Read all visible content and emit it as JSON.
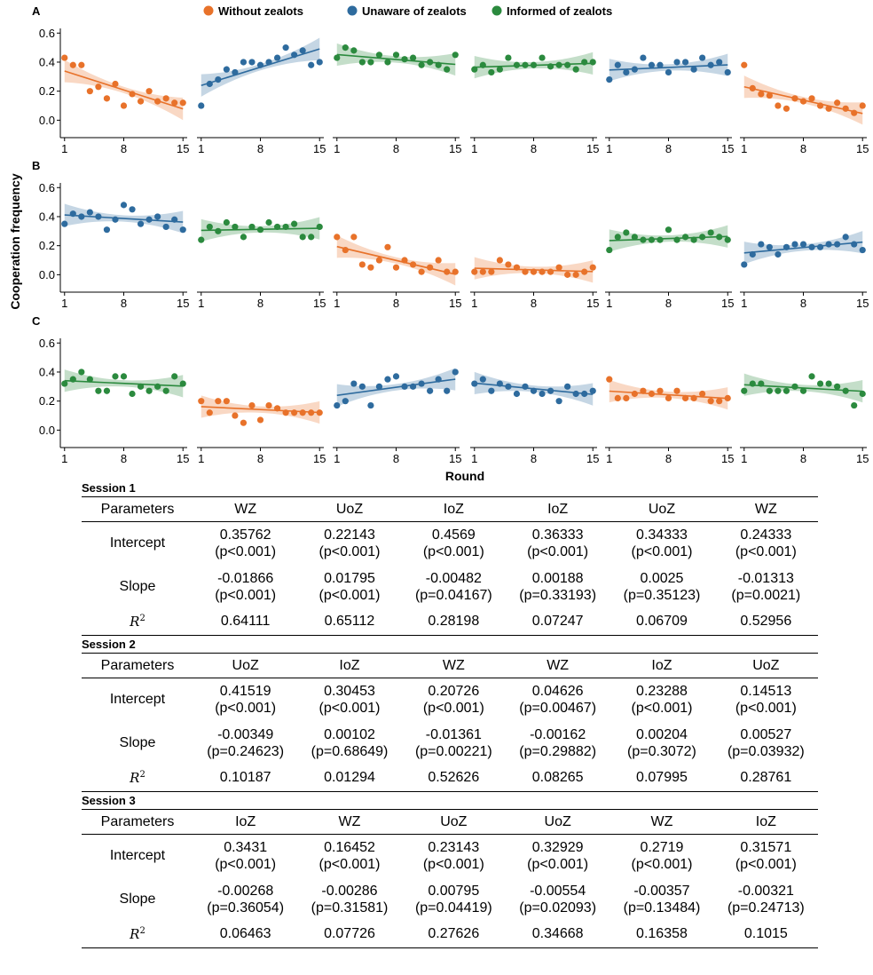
{
  "legend": [
    {
      "label": "Without zealots",
      "color": "#e8722a"
    },
    {
      "label": "Unaware of zealots",
      "color": "#2e6b9e"
    },
    {
      "label": "Informed of zealots",
      "color": "#2b8a3e"
    }
  ],
  "ylabel": "Cooperation frequency",
  "xlabel": "Round",
  "chart_data": {
    "type": "scatter",
    "x_ticks": [
      1,
      8,
      15
    ],
    "y_ticks": [
      "0.0",
      "0.2",
      "0.4",
      "0.6"
    ],
    "ylim": [
      -0.12,
      0.62
    ],
    "xlim": [
      0.5,
      15.5
    ],
    "colors": {
      "WZ": "#e8722a",
      "UoZ": "#2e6b9e",
      "IoZ": "#2b8a3e"
    },
    "rows": [
      {
        "label": "A",
        "panels": [
          {
            "condition": "WZ",
            "points": [
              0.43,
              0.38,
              0.38,
              0.2,
              0.23,
              0.15,
              0.25,
              0.1,
              0.18,
              0.13,
              0.2,
              0.13,
              0.15,
              0.12,
              0.12
            ],
            "intercept": 0.35762,
            "slope": -0.01866
          },
          {
            "condition": "UoZ",
            "points": [
              0.1,
              0.25,
              0.28,
              0.35,
              0.33,
              0.4,
              0.4,
              0.38,
              0.4,
              0.43,
              0.5,
              0.45,
              0.48,
              0.38,
              0.4
            ],
            "intercept": 0.22143,
            "slope": 0.01795
          },
          {
            "condition": "IoZ",
            "points": [
              0.43,
              0.5,
              0.48,
              0.4,
              0.4,
              0.45,
              0.4,
              0.45,
              0.42,
              0.43,
              0.38,
              0.4,
              0.38,
              0.35,
              0.45
            ],
            "intercept": 0.4569,
            "slope": -0.00482
          },
          {
            "condition": "IoZ",
            "points": [
              0.35,
              0.38,
              0.33,
              0.35,
              0.43,
              0.38,
              0.38,
              0.38,
              0.43,
              0.37,
              0.38,
              0.38,
              0.35,
              0.4,
              0.4
            ],
            "intercept": 0.36333,
            "slope": 0.00188
          },
          {
            "condition": "UoZ",
            "points": [
              0.28,
              0.38,
              0.33,
              0.35,
              0.43,
              0.38,
              0.38,
              0.33,
              0.4,
              0.4,
              0.35,
              0.43,
              0.38,
              0.4,
              0.33
            ],
            "intercept": 0.34333,
            "slope": 0.0025
          },
          {
            "condition": "WZ",
            "points": [
              0.38,
              0.22,
              0.18,
              0.17,
              0.1,
              0.08,
              0.15,
              0.13,
              0.15,
              0.1,
              0.08,
              0.12,
              0.08,
              0.05,
              0.1
            ],
            "intercept": 0.24333,
            "slope": -0.01313
          }
        ]
      },
      {
        "label": "B",
        "panels": [
          {
            "condition": "UoZ",
            "points": [
              0.35,
              0.42,
              0.4,
              0.43,
              0.4,
              0.31,
              0.38,
              0.48,
              0.45,
              0.35,
              0.38,
              0.4,
              0.33,
              0.38,
              0.31
            ],
            "intercept": 0.41519,
            "slope": -0.00349
          },
          {
            "condition": "IoZ",
            "points": [
              0.24,
              0.33,
              0.3,
              0.36,
              0.33,
              0.26,
              0.33,
              0.31,
              0.36,
              0.33,
              0.33,
              0.35,
              0.26,
              0.26,
              0.33
            ],
            "intercept": 0.30453,
            "slope": 0.00102
          },
          {
            "condition": "WZ",
            "points": [
              0.26,
              0.17,
              0.26,
              0.07,
              0.05,
              0.1,
              0.19,
              0.05,
              0.1,
              0.07,
              0.02,
              0.05,
              0.1,
              0.02,
              0.02
            ],
            "intercept": 0.20726,
            "slope": -0.01361
          },
          {
            "condition": "WZ",
            "points": [
              0.02,
              0.02,
              0.02,
              0.1,
              0.07,
              0.05,
              0.02,
              0.02,
              0.02,
              0.02,
              0.05,
              0.0,
              0.0,
              0.02,
              0.05
            ],
            "intercept": 0.04626,
            "slope": -0.00162
          },
          {
            "condition": "IoZ",
            "points": [
              0.17,
              0.26,
              0.29,
              0.26,
              0.24,
              0.24,
              0.24,
              0.31,
              0.24,
              0.26,
              0.24,
              0.26,
              0.29,
              0.26,
              0.24
            ],
            "intercept": 0.23288,
            "slope": 0.00204
          },
          {
            "condition": "UoZ",
            "points": [
              0.07,
              0.14,
              0.21,
              0.19,
              0.14,
              0.19,
              0.21,
              0.21,
              0.19,
              0.19,
              0.21,
              0.21,
              0.26,
              0.21,
              0.17
            ],
            "intercept": 0.14513,
            "slope": 0.00527
          }
        ]
      },
      {
        "label": "C",
        "panels": [
          {
            "condition": "IoZ",
            "points": [
              0.32,
              0.35,
              0.4,
              0.35,
              0.27,
              0.27,
              0.37,
              0.37,
              0.25,
              0.3,
              0.27,
              0.3,
              0.27,
              0.37,
              0.32
            ],
            "intercept": 0.3431,
            "slope": -0.00268
          },
          {
            "condition": "WZ",
            "points": [
              0.2,
              0.12,
              0.2,
              0.2,
              0.1,
              0.05,
              0.17,
              0.07,
              0.17,
              0.15,
              0.12,
              0.12,
              0.12,
              0.12,
              0.12
            ],
            "intercept": 0.16452,
            "slope": -0.00286
          },
          {
            "condition": "UoZ",
            "points": [
              0.17,
              0.2,
              0.32,
              0.3,
              0.17,
              0.3,
              0.35,
              0.37,
              0.3,
              0.3,
              0.32,
              0.27,
              0.35,
              0.27,
              0.4
            ],
            "intercept": 0.23143,
            "slope": 0.00795
          },
          {
            "condition": "UoZ",
            "points": [
              0.32,
              0.35,
              0.27,
              0.32,
              0.3,
              0.25,
              0.3,
              0.27,
              0.25,
              0.27,
              0.2,
              0.3,
              0.25,
              0.25,
              0.27
            ],
            "intercept": 0.32929,
            "slope": -0.00554
          },
          {
            "condition": "WZ",
            "points": [
              0.35,
              0.22,
              0.22,
              0.25,
              0.27,
              0.25,
              0.27,
              0.22,
              0.27,
              0.22,
              0.22,
              0.25,
              0.2,
              0.2,
              0.22
            ],
            "intercept": 0.2719,
            "slope": -0.00357
          },
          {
            "condition": "IoZ",
            "points": [
              0.27,
              0.32,
              0.32,
              0.27,
              0.27,
              0.27,
              0.3,
              0.27,
              0.37,
              0.32,
              0.32,
              0.3,
              0.27,
              0.17,
              0.25
            ],
            "intercept": 0.31571,
            "slope": -0.00321
          }
        ]
      }
    ]
  },
  "tables": [
    {
      "title": "Session 1",
      "header": [
        "Parameters",
        "WZ",
        "UoZ",
        "IoZ",
        "IoZ",
        "UoZ",
        "WZ"
      ],
      "intercept_label": "Intercept",
      "slope_label": "Slope",
      "intercept": [
        [
          "0.35762",
          "(p<0.001)"
        ],
        [
          "0.22143",
          "(p<0.001)"
        ],
        [
          "0.4569",
          "(p<0.001)"
        ],
        [
          "0.36333",
          "(p<0.001)"
        ],
        [
          "0.34333",
          "(p<0.001)"
        ],
        [
          "0.24333",
          "(p<0.001)"
        ]
      ],
      "slope": [
        [
          "-0.01866",
          "(p<0.001)"
        ],
        [
          "0.01795",
          "(p<0.001)"
        ],
        [
          "-0.00482",
          "(p=0.04167)"
        ],
        [
          "0.00188",
          "(p=0.33193)"
        ],
        [
          "0.0025",
          "(p=0.35123)"
        ],
        [
          "-0.01313",
          "(p=0.0021)"
        ]
      ],
      "r2": [
        "0.64111",
        "0.65112",
        "0.28198",
        "0.07247",
        "0.06709",
        "0.52956"
      ]
    },
    {
      "title": "Session 2",
      "header": [
        "Parameters",
        "UoZ",
        "IoZ",
        "WZ",
        "WZ",
        "IoZ",
        "UoZ"
      ],
      "intercept_label": "Intercept",
      "slope_label": "Slope",
      "intercept": [
        [
          "0.41519",
          "(p<0.001)"
        ],
        [
          "0.30453",
          "(p<0.001)"
        ],
        [
          "0.20726",
          "(p<0.001)"
        ],
        [
          "0.04626",
          "(p=0.00467)"
        ],
        [
          "0.23288",
          "(p<0.001)"
        ],
        [
          "0.14513",
          "(p<0.001)"
        ]
      ],
      "slope": [
        [
          "-0.00349",
          "(p=0.24623)"
        ],
        [
          "0.00102",
          "(p=0.68649)"
        ],
        [
          "-0.01361",
          "(p=0.00221)"
        ],
        [
          "-0.00162",
          "(p=0.29882)"
        ],
        [
          "0.00204",
          "(p=0.3072)"
        ],
        [
          "0.00527",
          "(p=0.03932)"
        ]
      ],
      "r2": [
        "0.10187",
        "0.01294",
        "0.52626",
        "0.08265",
        "0.07995",
        "0.28761"
      ]
    },
    {
      "title": "Session 3",
      "header": [
        "Parameters",
        "IoZ",
        "WZ",
        "UoZ",
        "UoZ",
        "WZ",
        "IoZ"
      ],
      "intercept_label": "Intercept",
      "slope_label": "Slope",
      "intercept": [
        [
          "0.3431",
          "(p<0.001)"
        ],
        [
          "0.16452",
          "(p<0.001)"
        ],
        [
          "0.23143",
          "(p<0.001)"
        ],
        [
          "0.32929",
          "(p<0.001)"
        ],
        [
          "0.2719",
          "(p<0.001)"
        ],
        [
          "0.31571",
          "(p<0.001)"
        ]
      ],
      "slope": [
        [
          "-0.00268",
          "(p=0.36054)"
        ],
        [
          "-0.00286",
          "(p=0.31581)"
        ],
        [
          "0.00795",
          "(p=0.04419)"
        ],
        [
          "-0.00554",
          "(p=0.02093)"
        ],
        [
          "-0.00357",
          "(p=0.13484)"
        ],
        [
          "-0.00321",
          "(p=0.24713)"
        ]
      ],
      "r2": [
        "0.06463",
        "0.07726",
        "0.27626",
        "0.34668",
        "0.16358",
        "0.1015"
      ]
    }
  ]
}
